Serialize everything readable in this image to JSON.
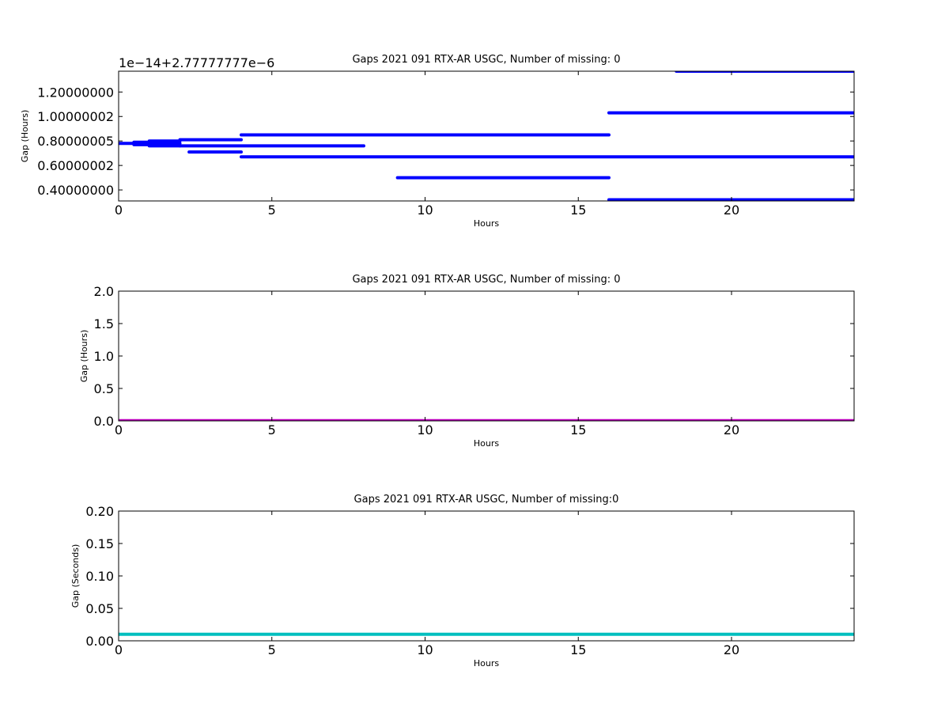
{
  "colors": {
    "blue": "#0000ff",
    "magenta": "#bf00bf",
    "cyan": "#00bfbf",
    "axes": "#000000"
  },
  "chart_data": [
    {
      "type": "line",
      "title": "Gaps 2021 091 RTX-AR  USGC, Number of missing: 0",
      "xlabel": "Hours",
      "ylabel": "Gap (Hours)",
      "offset_text": "1e−14+2.77777777e−6",
      "xlim": [
        0,
        24
      ],
      "ylim": [
        0.31,
        1.37
      ],
      "x_ticks": [
        0,
        5,
        10,
        15,
        20
      ],
      "y_ticks": [
        0.4,
        0.6,
        0.8,
        1.0,
        1.2
      ],
      "x_tick_labels": [
        "0",
        "5",
        "10",
        "15",
        "20"
      ],
      "y_tick_labels": [
        "0.40000000",
        "0.60000002",
        "0.80000005",
        "1.00000002",
        "1.20000000"
      ],
      "grid": false,
      "series": [
        {
          "color": "blue",
          "segments": [
            {
              "x": [
                0,
                0.5
              ],
              "y": [
                0.78,
                0.78
              ]
            },
            {
              "x": [
                0.5,
                1.0
              ],
              "y": [
                0.79,
                0.79
              ]
            },
            {
              "x": [
                0.5,
                1.0
              ],
              "y": [
                0.77,
                0.77
              ]
            },
            {
              "x": [
                1.0,
                2.0
              ],
              "y": [
                0.8,
                0.8
              ]
            },
            {
              "x": [
                1.0,
                2.0
              ],
              "y": [
                0.78,
                0.78
              ]
            },
            {
              "x": [
                1.0,
                2.0
              ],
              "y": [
                0.76,
                0.76
              ]
            },
            {
              "x": [
                2.0,
                4.0
              ],
              "y": [
                0.81,
                0.81
              ]
            },
            {
              "x": [
                2.0,
                8.0
              ],
              "y": [
                0.76,
                0.76
              ]
            },
            {
              "x": [
                2.3,
                4.0
              ],
              "y": [
                0.71,
                0.71
              ]
            },
            {
              "x": [
                4.0,
                16.0
              ],
              "y": [
                0.85,
                0.85
              ]
            },
            {
              "x": [
                4.0,
                24.0
              ],
              "y": [
                0.67,
                0.67
              ]
            },
            {
              "x": [
                9.1,
                16.0
              ],
              "y": [
                0.5,
                0.5
              ]
            },
            {
              "x": [
                16.0,
                24.0
              ],
              "y": [
                1.03,
                1.03
              ]
            },
            {
              "x": [
                16.0,
                24.0
              ],
              "y": [
                0.32,
                0.32
              ]
            },
            {
              "x": [
                18.2,
                24.0
              ],
              "y": [
                1.37,
                1.37
              ]
            }
          ]
        }
      ]
    },
    {
      "type": "line",
      "title": "Gaps 2021 091 RTX-AR  USGC, Number of missing: 0",
      "xlabel": "Hours",
      "ylabel": "Gap (Hours)",
      "xlim": [
        0,
        24
      ],
      "ylim": [
        0,
        2.0
      ],
      "x_ticks": [
        0,
        5,
        10,
        15,
        20
      ],
      "y_ticks": [
        0,
        0.5,
        1.0,
        1.5,
        2.0
      ],
      "x_tick_labels": [
        "0",
        "5",
        "10",
        "15",
        "20"
      ],
      "y_tick_labels": [
        "0.0",
        "0.5",
        "1.0",
        "1.5",
        "2.0"
      ],
      "grid": false,
      "series": [
        {
          "color": "magenta",
          "segments": [
            {
              "x": [
                0,
                24
              ],
              "y": [
                0.0028,
                0.0028
              ]
            }
          ]
        }
      ]
    },
    {
      "type": "line",
      "title": "Gaps 2021 091 RTX-AR  USGC, Number of missing:0",
      "xlabel": "Hours",
      "ylabel": "Gap (Seconds)",
      "xlim": [
        0,
        24
      ],
      "ylim": [
        0,
        0.2
      ],
      "x_ticks": [
        0,
        5,
        10,
        15,
        20
      ],
      "y_ticks": [
        0,
        0.05,
        0.1,
        0.15,
        0.2
      ],
      "x_tick_labels": [
        "0",
        "5",
        "10",
        "15",
        "20"
      ],
      "y_tick_labels": [
        "0.00",
        "0.05",
        "0.10",
        "0.15",
        "0.20"
      ],
      "grid": false,
      "series": [
        {
          "color": "cyan",
          "segments": [
            {
              "x": [
                0,
                24
              ],
              "y": [
                0.01,
                0.01
              ]
            }
          ]
        }
      ]
    }
  ]
}
